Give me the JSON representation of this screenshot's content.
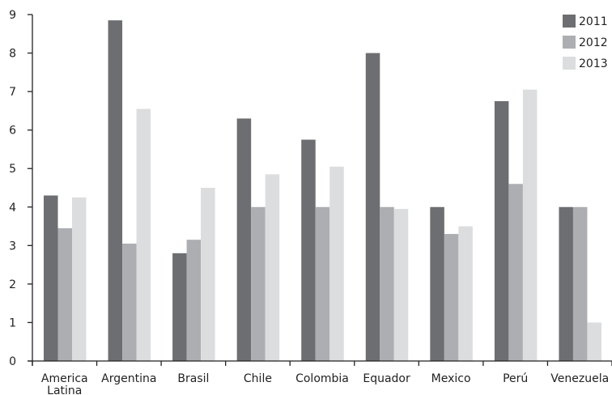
{
  "chart_data": {
    "type": "bar",
    "title": "",
    "xlabel": "",
    "ylabel": "",
    "ylim": [
      0,
      9
    ],
    "yticks": [
      0,
      1,
      2,
      3,
      4,
      5,
      6,
      7,
      8,
      9
    ],
    "grid": false,
    "legend_position": "top-right",
    "categories": [
      [
        "America",
        "Latina"
      ],
      [
        "Argentina"
      ],
      [
        "Brasil"
      ],
      [
        "Chile"
      ],
      [
        "Colombia"
      ],
      [
        "Equador"
      ],
      [
        "Mexico"
      ],
      [
        "Perú"
      ],
      [
        "Venezuela"
      ]
    ],
    "series": [
      {
        "name": "2011",
        "color": "#6d6e71",
        "values": [
          4.3,
          8.85,
          2.8,
          6.3,
          5.75,
          8.0,
          4.0,
          6.75,
          4.0
        ]
      },
      {
        "name": "2012",
        "color": "#adaeb1",
        "values": [
          3.45,
          3.05,
          3.15,
          4.0,
          4.0,
          4.0,
          3.3,
          4.6,
          4.0
        ]
      },
      {
        "name": "2013",
        "color": "#dcddde",
        "values": [
          4.25,
          6.55,
          4.5,
          4.85,
          5.05,
          3.95,
          3.5,
          7.05,
          1.0
        ]
      }
    ]
  }
}
